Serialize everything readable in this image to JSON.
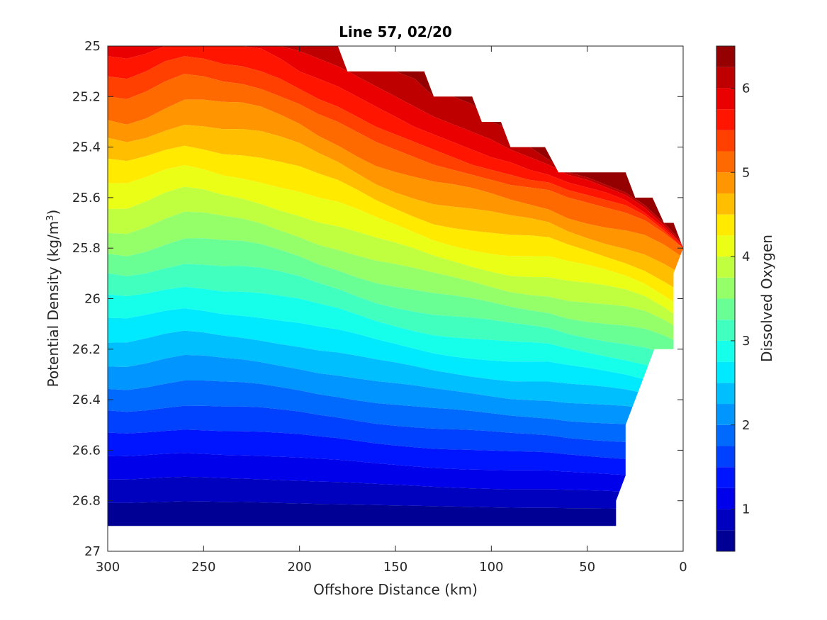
{
  "chart_data": {
    "type": "filled-contour",
    "title": "Line 57, 02/20",
    "xlabel": "Offshore Distance (km)",
    "ylabel_main": "Potential Density (kg/m",
    "ylabel_sup": "3",
    "ylabel_close": ")",
    "colorbar_label": "Dissolved Oxygen",
    "x_axis": {
      "range": [
        300,
        0
      ],
      "reversed": true,
      "ticks": [
        300,
        250,
        200,
        150,
        100,
        50,
        0
      ],
      "tick_labels": [
        "300",
        "250",
        "200",
        "150",
        "100",
        "50",
        "0"
      ]
    },
    "y_axis": {
      "range": [
        25,
        27
      ],
      "reversed": true,
      "ticks": [
        25,
        25.2,
        25.4,
        25.6,
        25.8,
        26,
        26.2,
        26.4,
        26.6,
        26.8,
        27
      ],
      "tick_labels": [
        "25",
        "25.2",
        "25.4",
        "25.6",
        "25.8",
        "26",
        "26.2",
        "26.4",
        "26.6",
        "26.8",
        "27"
      ]
    },
    "colorbar": {
      "range": [
        0.5,
        6.5
      ],
      "level_step": 0.25,
      "ticks": [
        1,
        2,
        3,
        4,
        5,
        6
      ],
      "tick_labels": [
        "1",
        "2",
        "3",
        "4",
        "5",
        "6"
      ],
      "colormap": "jet"
    },
    "data_extent": {
      "top_boundary": [
        [
          300,
          25.0
        ],
        [
          180,
          25.0
        ],
        [
          175,
          25.1
        ],
        [
          135,
          25.1
        ],
        [
          130,
          25.2
        ],
        [
          110,
          25.2
        ],
        [
          105,
          25.3
        ],
        [
          95,
          25.3
        ],
        [
          90,
          25.4
        ],
        [
          72,
          25.4
        ],
        [
          65,
          25.5
        ],
        [
          30,
          25.5
        ],
        [
          25,
          25.6
        ],
        [
          16,
          25.6
        ],
        [
          10,
          25.7
        ],
        [
          5,
          25.7
        ],
        [
          0,
          25.8
        ]
      ],
      "right_boundary": [
        [
          0,
          25.8
        ],
        [
          5,
          25.9
        ],
        [
          5,
          26.2
        ],
        [
          15,
          26.2
        ],
        [
          30,
          26.5
        ],
        [
          30,
          26.7
        ],
        [
          35,
          26.8
        ],
        [
          35,
          26.9
        ]
      ],
      "bottom_density": 26.9,
      "left_distance": 300
    },
    "oxygen_levels": [
      6.25,
      6.0,
      5.75,
      5.5,
      5.25,
      5.0,
      4.75,
      4.5,
      4.25,
      4.0,
      3.75,
      3.5,
      3.25,
      3.0,
      2.75,
      2.5,
      2.25,
      2.0,
      1.75,
      1.5,
      1.25,
      1.0,
      0.75
    ],
    "contour_stations_km": [
      300,
      290,
      280,
      270,
      260,
      250,
      240,
      230,
      220,
      210,
      200,
      190,
      180,
      170,
      160,
      150,
      140,
      130,
      120,
      110,
      100,
      90,
      80,
      70,
      60,
      50,
      40,
      30,
      20,
      10,
      0
    ],
    "contour_depths": [
      [
        25.0,
        25.0,
        25.0,
        25.0,
        25.0,
        25.0,
        25.0,
        25.0,
        25.0,
        25.0,
        25.0,
        25.0,
        25.0,
        25.05,
        25.1,
        25.1,
        25.13,
        25.2,
        25.2,
        25.23,
        25.3,
        25.33,
        25.4,
        25.45,
        25.5,
        25.52,
        25.55,
        25.58,
        25.63,
        25.7,
        25.78
      ],
      [
        25.0,
        25.0,
        25.0,
        25.0,
        25.0,
        25.0,
        25.0,
        25.0,
        25.0,
        25.0,
        25.02,
        25.05,
        25.08,
        25.12,
        25.16,
        25.2,
        25.24,
        25.28,
        25.31,
        25.34,
        25.37,
        25.41,
        25.44,
        25.47,
        25.51,
        25.53,
        25.56,
        25.59,
        25.64,
        25.71,
        25.79
      ],
      [
        25.04,
        25.05,
        25.03,
        25.0,
        25.0,
        25.0,
        25.0,
        25.0,
        25.01,
        25.05,
        25.1,
        25.13,
        25.16,
        25.2,
        25.24,
        25.28,
        25.32,
        25.35,
        25.38,
        25.41,
        25.44,
        25.46,
        25.49,
        25.51,
        25.54,
        25.56,
        25.58,
        25.61,
        25.66,
        25.72,
        25.79
      ],
      [
        25.12,
        25.13,
        25.1,
        25.06,
        25.04,
        25.05,
        25.07,
        25.08,
        25.1,
        25.13,
        25.17,
        25.21,
        25.24,
        25.28,
        25.32,
        25.35,
        25.38,
        25.41,
        25.44,
        25.47,
        25.49,
        25.51,
        25.53,
        25.54,
        25.57,
        25.59,
        25.61,
        25.63,
        25.67,
        25.73,
        25.8
      ],
      [
        25.2,
        25.21,
        25.18,
        25.14,
        25.11,
        25.12,
        25.14,
        25.15,
        25.17,
        25.2,
        25.23,
        25.27,
        25.3,
        25.34,
        25.38,
        25.41,
        25.44,
        25.47,
        25.49,
        25.51,
        25.53,
        25.55,
        25.56,
        25.57,
        25.6,
        25.62,
        25.64,
        25.66,
        25.69,
        25.74,
        25.8
      ]
    ]
  }
}
